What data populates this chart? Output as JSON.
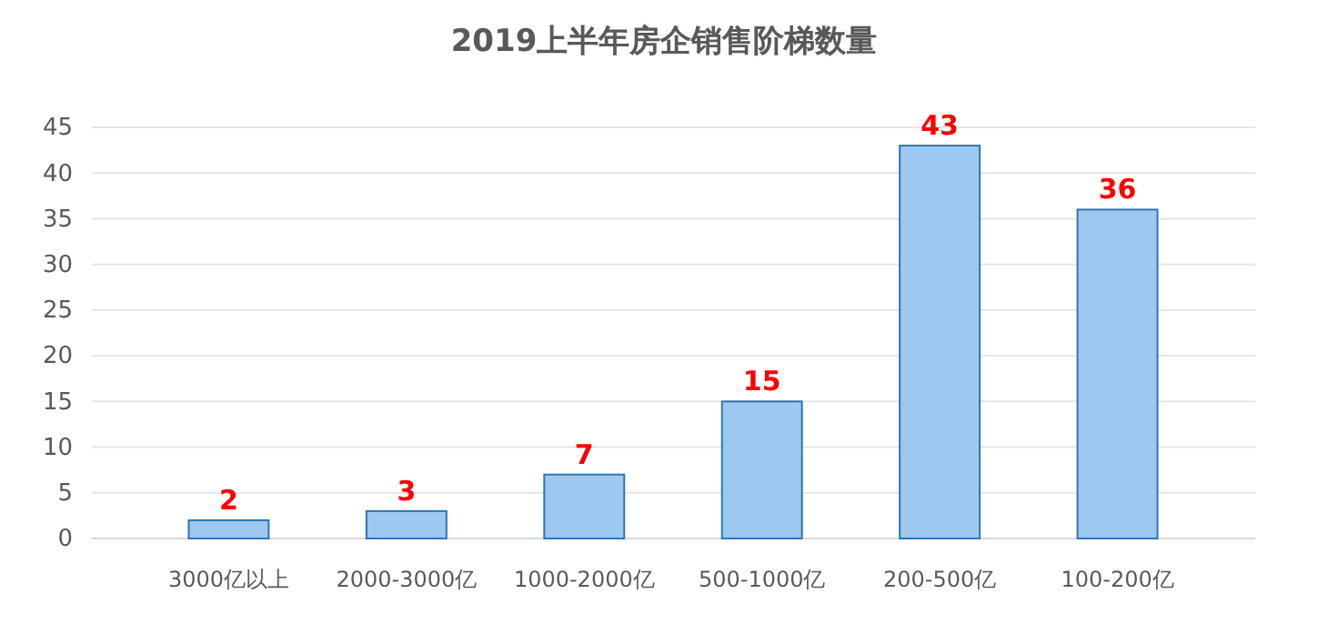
{
  "chart_data": {
    "type": "bar",
    "title": "2019上半年房企销售阶梯数量",
    "categories": [
      "3000亿以上",
      "2000-3000亿",
      "1000-2000亿",
      "500-1000亿",
      "200-500亿",
      "100-200亿"
    ],
    "values": [
      2,
      3,
      7,
      15,
      43,
      36
    ],
    "color": "#9dc8f0",
    "ylim": [
      0,
      45
    ],
    "yticks": [
      0,
      5,
      10,
      15,
      20,
      25,
      30,
      35,
      40,
      45
    ],
    "grid": "y",
    "data_labels": true
  }
}
